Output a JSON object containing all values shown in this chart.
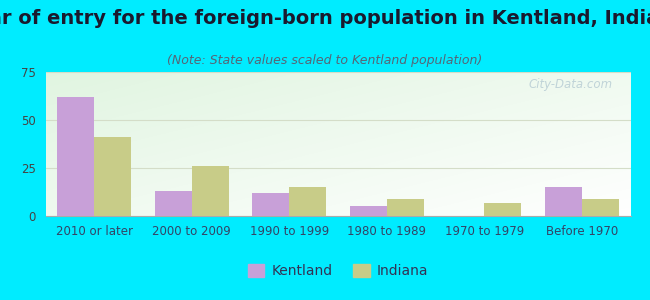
{
  "title": "Year of entry for the foreign-born population in Kentland, Indiana",
  "subtitle": "(Note: State values scaled to Kentland population)",
  "categories": [
    "2010 or later",
    "2000 to 2009",
    "1990 to 1999",
    "1980 to 1989",
    "1970 to 1979",
    "Before 1970"
  ],
  "kentland_values": [
    62,
    13,
    12,
    5,
    0,
    15
  ],
  "indiana_values": [
    41,
    26,
    15,
    9,
    7,
    9
  ],
  "kentland_color": "#c8a0d8",
  "indiana_color": "#c8cc88",
  "background_color": "#00ecff",
  "ylim": [
    0,
    75
  ],
  "yticks": [
    0,
    25,
    50,
    75
  ],
  "bar_width": 0.38,
  "title_fontsize": 14,
  "subtitle_fontsize": 9,
  "legend_fontsize": 10,
  "tick_fontsize": 8.5,
  "watermark_text": "City-Data.com",
  "watermark_color": "#b8cdd4",
  "grid_color": "#d4ddc8",
  "title_color": "#1a1a2e",
  "subtitle_color": "#556677",
  "tick_color": "#334466"
}
